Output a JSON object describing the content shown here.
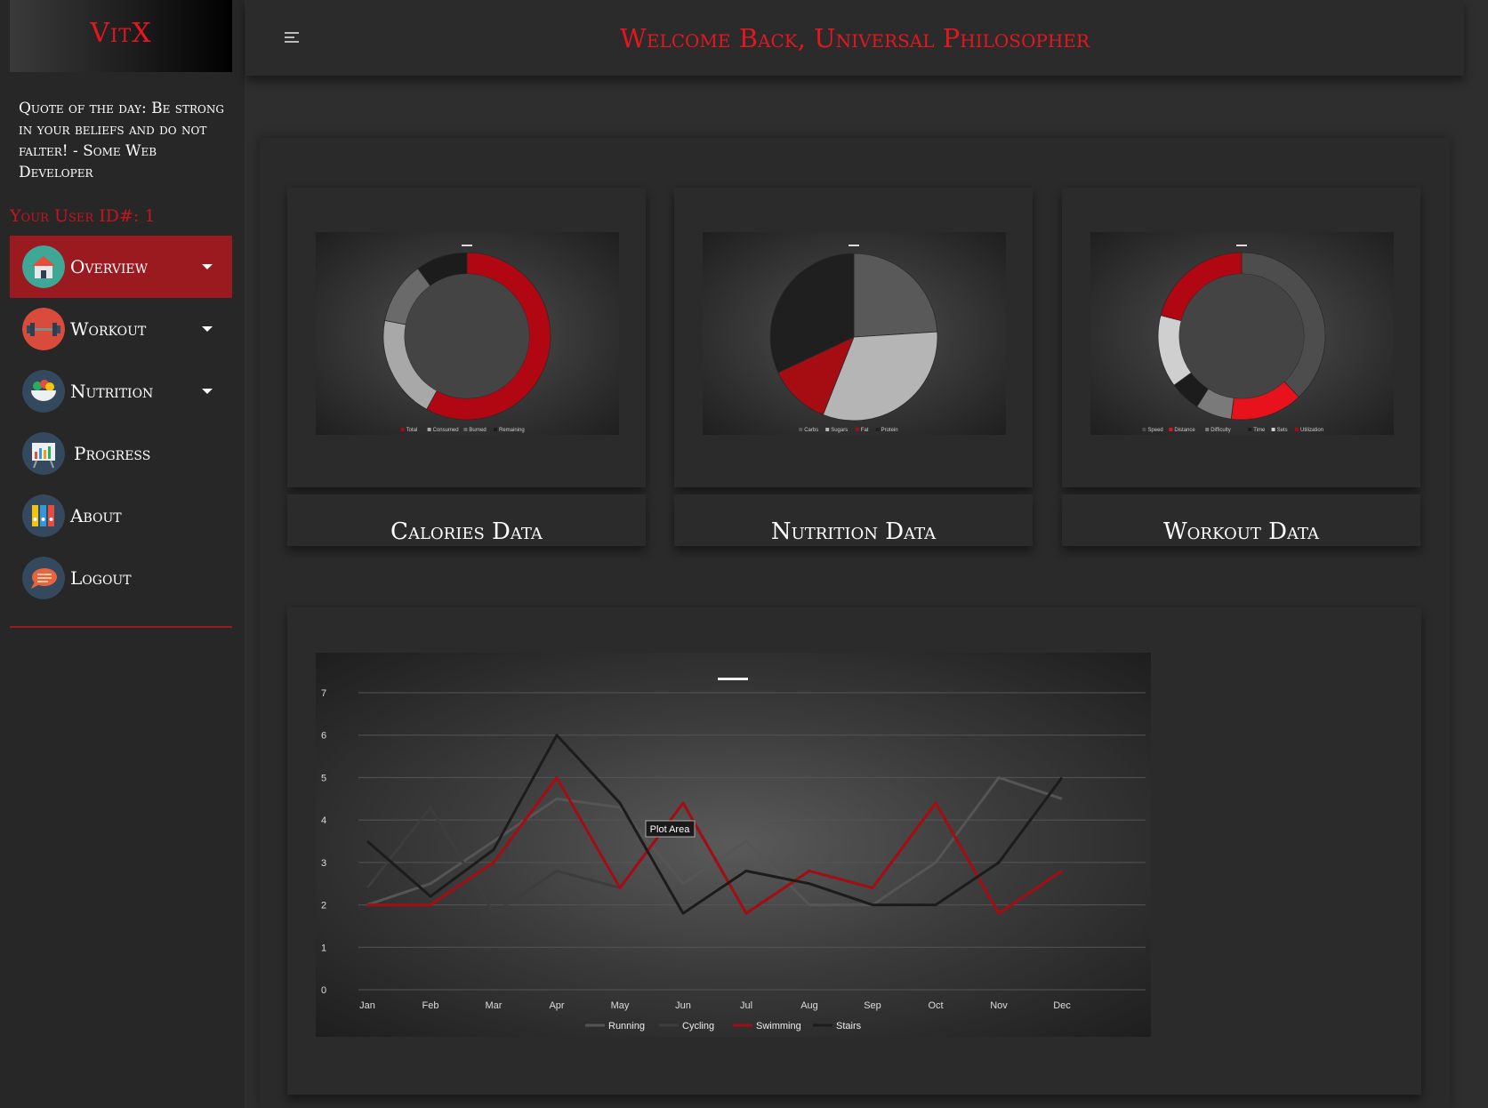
{
  "brand": "VitX",
  "quote": "Quote of the day: Be strong in your beliefs and do not falter! - Some Web Developer",
  "user_id_label": "Your User ID#: 1",
  "nav": [
    {
      "label": "Overview",
      "icon": "home-icon",
      "caret": true,
      "active": true
    },
    {
      "label": "Workout",
      "icon": "dumbbell-icon",
      "caret": true
    },
    {
      "label": "Nutrition",
      "icon": "food-bowl-icon",
      "caret": true
    },
    {
      "label": "Progress",
      "icon": "chart-easel-icon",
      "caret": false
    },
    {
      "label": "About",
      "icon": "binders-icon",
      "caret": false
    },
    {
      "label": "Logout",
      "icon": "chat-bubble-icon",
      "caret": false
    }
  ],
  "header": {
    "welcome": "Welcome Back, Universal Philosopher"
  },
  "colors": {
    "accent": "#e4171f",
    "active_nav": "#9b1a20",
    "series_red": "#a50d13"
  },
  "cards": {
    "calories": {
      "caption": "Calories Data"
    },
    "nutrition": {
      "caption": "Nutrition Data"
    },
    "workout": {
      "caption": "Workout Data"
    }
  },
  "tooltip": "Plot Area",
  "chart_data": [
    {
      "type": "pie",
      "variant": "doughnut",
      "title": "",
      "categories": [
        "Total",
        "Consumed",
        "Burned",
        "Remaining"
      ],
      "values": [
        58,
        20,
        12,
        10
      ],
      "colors": [
        "#b00712",
        "#a8a8a8",
        "#6a6a6a",
        "#1c1c1c"
      ]
    },
    {
      "type": "pie",
      "title": "",
      "categories": [
        "Carbs",
        "Sugars",
        "Fat",
        "Protein"
      ],
      "values": [
        24,
        32,
        12,
        32
      ],
      "colors": [
        "#595959",
        "#b5b5b5",
        "#a50d13",
        "#1f1f1f"
      ]
    },
    {
      "type": "pie",
      "variant": "doughnut",
      "title": "",
      "categories": [
        "Speed",
        "Distance",
        "Difficulty",
        "Time",
        "Sets",
        "Utilization"
      ],
      "values": [
        38,
        14,
        7,
        6,
        14,
        21
      ],
      "colors": [
        "#4d4d4d",
        "#e8121c",
        "#7a7a7a",
        "#1c1c1c",
        "#cfcfcf",
        "#b00712"
      ]
    },
    {
      "type": "line",
      "title": "",
      "categories": [
        "Jan",
        "Feb",
        "Mar",
        "Apr",
        "May",
        "Jun",
        "Jul",
        "Aug",
        "Sep",
        "Oct",
        "Nov",
        "Dec"
      ],
      "ylim": [
        0,
        7
      ],
      "yticks": [
        0,
        1,
        2,
        3,
        4,
        5,
        6,
        7
      ],
      "grid": true,
      "legend": "bottom",
      "series": [
        {
          "name": "Running",
          "color": "#555555",
          "values": [
            2,
            2.5,
            3.5,
            4.5,
            4.3,
            2.5,
            3.5,
            2,
            2,
            3,
            5,
            4.5
          ]
        },
        {
          "name": "Cycling",
          "color": "#3d3d3d",
          "values": [
            2.4,
            4.3,
            1.8,
            2.8,
            2.4,
            4.4,
            1.8,
            2.8,
            2.4,
            4.4,
            1.8,
            2.8
          ]
        },
        {
          "name": "Swimming",
          "color": "#a50d13",
          "values": [
            2,
            2,
            3,
            5,
            2.4,
            4.4,
            1.8,
            2.8,
            2.4,
            4.4,
            1.8,
            2.8
          ]
        },
        {
          "name": "Stairs",
          "color": "#1c1c1c",
          "values": [
            3.5,
            2.2,
            3.3,
            6,
            4.4,
            1.8,
            2.8,
            2.5,
            2,
            2,
            3,
            5
          ]
        }
      ]
    }
  ]
}
